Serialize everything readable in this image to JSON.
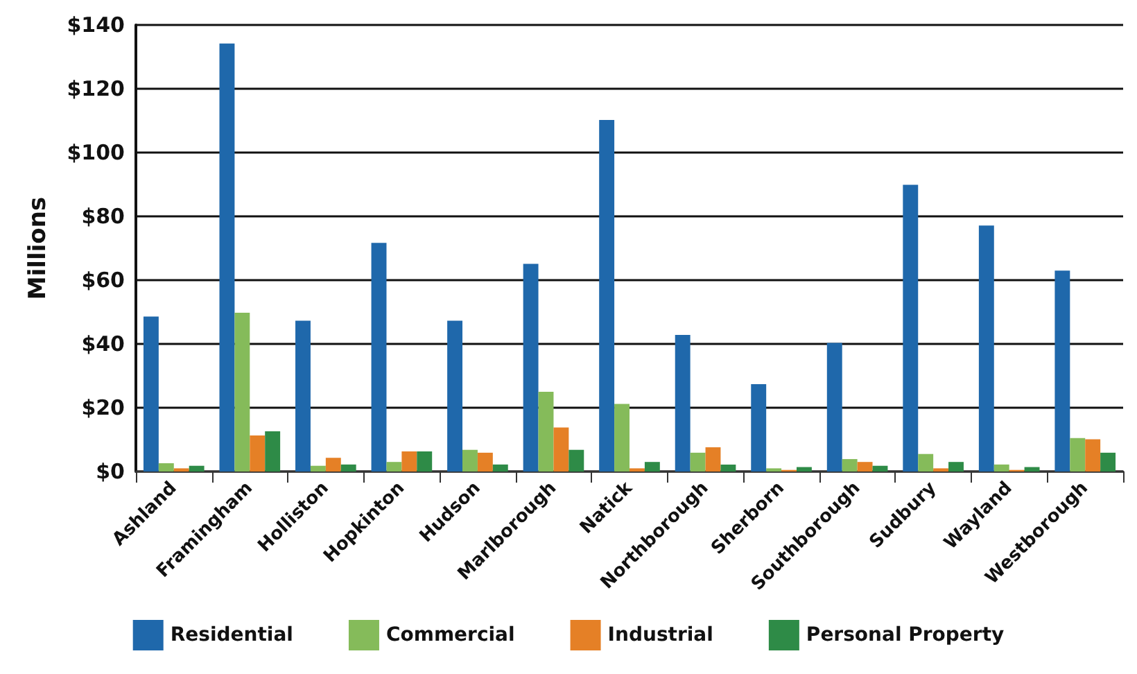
{
  "chart_data": {
    "type": "bar",
    "ylabel": "Millions",
    "categories": [
      "Ashland",
      "Framingham",
      "Holliston",
      "Hopkinton",
      "Hudson",
      "Marlborough",
      "Natick",
      "Northborough",
      "Sherborn",
      "Southborough",
      "Sudbury",
      "Wayland",
      "Westborough"
    ],
    "series": [
      {
        "name": "Residential",
        "color": "#1f68ab",
        "values": [
          48.6,
          134.2,
          47.3,
          71.7,
          47.3,
          65.1,
          110.2,
          42.8,
          27.4,
          40.3,
          89.9,
          77.1,
          63
        ]
      },
      {
        "name": "Commercial",
        "color": "#85bb5a",
        "values": [
          2.6,
          49.8,
          1.8,
          3,
          6.8,
          25,
          21.2,
          5.9,
          1,
          3.9,
          5.5,
          2.2,
          10.5
        ]
      },
      {
        "name": "Industrial",
        "color": "#e58026",
        "values": [
          1,
          11.3,
          4.3,
          6.3,
          5.9,
          13.8,
          1,
          7.6,
          0.5,
          3,
          1,
          0.5,
          10.1
        ]
      },
      {
        "name": "Personal Property",
        "color": "#2e8b47",
        "values": [
          1.8,
          12.6,
          2.2,
          6.3,
          2.2,
          6.8,
          3,
          2.2,
          1.4,
          1.8,
          3,
          1.4,
          5.9
        ]
      }
    ],
    "ylim": [
      0,
      140
    ],
    "yticks": [
      {
        "value": 0,
        "label": "$0"
      },
      {
        "value": 20,
        "label": "$20"
      },
      {
        "value": 40,
        "label": "$40"
      },
      {
        "value": 60,
        "label": "$60"
      },
      {
        "value": 80,
        "label": "$80"
      },
      {
        "value": 100,
        "label": "$100"
      },
      {
        "value": 120,
        "label": "$120"
      },
      {
        "value": 140,
        "label": "$140"
      }
    ],
    "grid": "y",
    "legend": "bottom"
  }
}
